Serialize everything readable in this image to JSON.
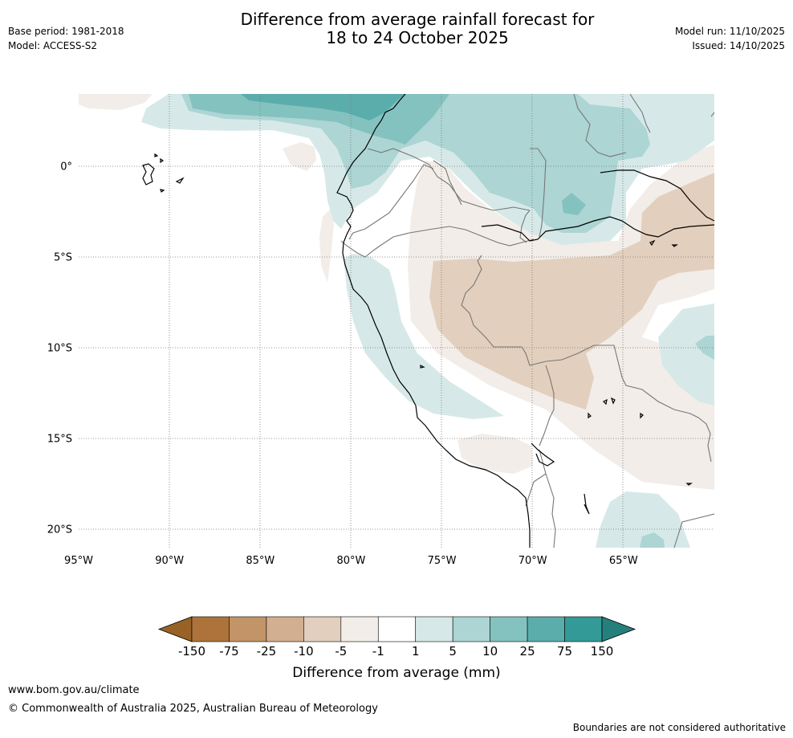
{
  "title": {
    "line1": "Difference from average rainfall forecast for",
    "line2": "18 to 24 October 2025"
  },
  "meta": {
    "base_period": "Base period: 1981-2018",
    "model": "Model: ACCESS-S2",
    "model_run": "Model run: 11/10/2025",
    "issued": "Issued: 14/10/2025"
  },
  "map": {
    "lon_range": [
      -95,
      -60
    ],
    "lat_range": [
      -21,
      4
    ],
    "lon_ticks": [
      {
        "value": -95,
        "label": "95°W"
      },
      {
        "value": -90,
        "label": "90°W"
      },
      {
        "value": -85,
        "label": "85°W"
      },
      {
        "value": -80,
        "label": "80°W"
      },
      {
        "value": -75,
        "label": "75°W"
      },
      {
        "value": -70,
        "label": "70°W"
      },
      {
        "value": -65,
        "label": "65°W"
      }
    ],
    "lat_ticks": [
      {
        "value": 0,
        "label": "0°"
      },
      {
        "value": -5,
        "label": "5°S"
      },
      {
        "value": -10,
        "label": "10°S"
      },
      {
        "value": -15,
        "label": "15°S"
      },
      {
        "value": -20,
        "label": "20°S"
      }
    ]
  },
  "colorbar": {
    "title": "Difference from average (mm)",
    "labels": [
      "-150",
      "-75",
      "-25",
      "-10",
      "-5",
      "-1",
      "1",
      "5",
      "10",
      "25",
      "75",
      "150"
    ],
    "colors": [
      "#ad733b",
      "#c29467",
      "#d2af90",
      "#e2cfbd",
      "#f2ede8",
      "#ffffff",
      "#d6e9e8",
      "#acd5d4",
      "#84c2c0",
      "#5aadab",
      "#339a97"
    ],
    "under_color": "#986227",
    "over_color": "#25807d"
  },
  "footer": {
    "url": "www.bom.gov.au/climate",
    "copyright": "© Commonwealth of Australia 2025, Australian Bureau of Meteorology",
    "note": "Boundaries are not considered authoritative"
  }
}
